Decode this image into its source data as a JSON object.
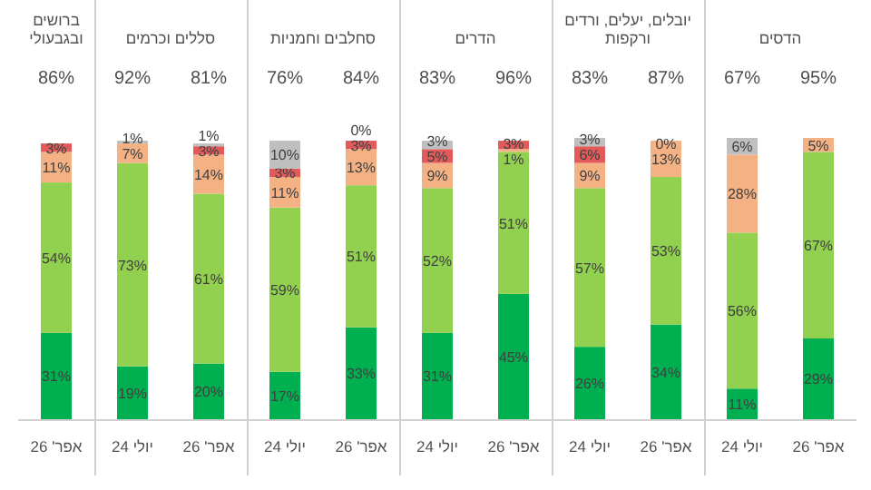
{
  "chart_data": [
    {
      "type": "bar",
      "stacked": true,
      "title": "ברושים ובגבעולי",
      "categories": [
        "אפר' 26"
      ],
      "annotations": [
        "86%"
      ],
      "series": [
        {
          "color": "#00b050",
          "values": [
            31
          ],
          "value_labels": [
            "31%"
          ]
        },
        {
          "color": "#92d050",
          "values": [
            54
          ],
          "value_labels": [
            "54%"
          ]
        },
        {
          "color": "#f4b183",
          "values": [
            11
          ],
          "value_labels": [
            "11%"
          ]
        },
        {
          "color": "#e35a5a",
          "values": [
            3
          ],
          "value_labels": [
            "3%"
          ]
        }
      ]
    },
    {
      "type": "bar",
      "stacked": true,
      "title": "סללים וכרמים",
      "categories": [
        "יולי 24",
        "אפר' 26"
      ],
      "annotations": [
        "92%",
        "81%"
      ],
      "series": [
        {
          "color": "#00b050",
          "values": [
            19,
            20
          ],
          "value_labels": [
            "19%",
            "20%"
          ]
        },
        {
          "color": "#92d050",
          "values": [
            73,
            61
          ],
          "value_labels": [
            "73%",
            "61%"
          ]
        },
        {
          "color": "#f4b183",
          "values": [
            7,
            14
          ],
          "value_labels": [
            "7%",
            "14%"
          ]
        },
        {
          "color": "#e35a5a",
          "values": [
            null,
            3
          ],
          "value_labels": [
            null,
            "3%"
          ]
        },
        {
          "color": "#bfbfbf",
          "values": [
            1,
            1
          ],
          "value_labels": [
            "1%",
            "1%"
          ]
        }
      ]
    },
    {
      "type": "bar",
      "stacked": true,
      "title": "סחלבים וחמניות",
      "categories": [
        "יולי 24",
        "אפר' 26"
      ],
      "annotations": [
        "76%",
        "84%"
      ],
      "series": [
        {
          "color": "#00b050",
          "values": [
            17,
            33
          ],
          "value_labels": [
            "17%",
            "33%"
          ]
        },
        {
          "color": "#92d050",
          "values": [
            59,
            51
          ],
          "value_labels": [
            "59%",
            "51%"
          ]
        },
        {
          "color": "#f4b183",
          "values": [
            11,
            13
          ],
          "value_labels": [
            "11%",
            "13%"
          ]
        },
        {
          "color": "#e35a5a",
          "values": [
            3,
            3
          ],
          "value_labels": [
            "3%",
            "3%"
          ]
        },
        {
          "color": "#bfbfbf",
          "values": [
            10,
            0
          ],
          "value_labels": [
            "10%",
            "0%"
          ]
        }
      ]
    },
    {
      "type": "bar",
      "stacked": true,
      "title": "הדרים",
      "categories": [
        "יולי 24",
        "אפר' 26"
      ],
      "annotations": [
        "83%",
        "96%"
      ],
      "series": [
        {
          "color": "#00b050",
          "values": [
            31,
            45
          ],
          "value_labels": [
            "31%",
            "45%"
          ]
        },
        {
          "color": "#92d050",
          "values": [
            52,
            51
          ],
          "value_labels": [
            "52%",
            "51%"
          ]
        },
        {
          "color": "#f4b183",
          "values": [
            9,
            1
          ],
          "value_labels": [
            "9%",
            "1%"
          ]
        },
        {
          "color": "#e35a5a",
          "values": [
            5,
            3
          ],
          "value_labels": [
            "5%",
            "3%"
          ]
        },
        {
          "color": "#bfbfbf",
          "values": [
            3,
            null
          ],
          "value_labels": [
            "3%",
            null
          ]
        }
      ]
    },
    {
      "type": "bar",
      "stacked": true,
      "title": "יובלים, יעלים, ורדים ורקפות",
      "categories": [
        "יולי 24",
        "אפר' 26"
      ],
      "annotations": [
        "83%",
        "87%"
      ],
      "series": [
        {
          "color": "#00b050",
          "values": [
            26,
            34
          ],
          "value_labels": [
            "26%",
            "34%"
          ]
        },
        {
          "color": "#92d050",
          "values": [
            57,
            53
          ],
          "value_labels": [
            "57%",
            "53%"
          ]
        },
        {
          "color": "#f4b183",
          "values": [
            9,
            13
          ],
          "value_labels": [
            "9%",
            "13%"
          ]
        },
        {
          "color": "#e35a5a",
          "values": [
            6,
            null
          ],
          "value_labels": [
            "6%",
            null
          ]
        },
        {
          "color": "#bfbfbf",
          "values": [
            3,
            0
          ],
          "value_labels": [
            "3%",
            "0%"
          ]
        }
      ]
    },
    {
      "type": "bar",
      "stacked": true,
      "title": "הדסים",
      "categories": [
        "יולי 24",
        "אפר' 26"
      ],
      "annotations": [
        "67%",
        "95%"
      ],
      "series": [
        {
          "color": "#00b050",
          "values": [
            11,
            29
          ],
          "value_labels": [
            "11%",
            "29%"
          ]
        },
        {
          "color": "#92d050",
          "values": [
            56,
            67
          ],
          "value_labels": [
            "56%",
            "67%"
          ]
        },
        {
          "color": "#f4b183",
          "values": [
            28,
            5
          ],
          "value_labels": [
            "28%",
            "5%"
          ]
        },
        {
          "color": "#bfbfbf",
          "values": [
            6,
            null
          ],
          "value_labels": [
            "6%",
            null
          ]
        }
      ]
    }
  ]
}
